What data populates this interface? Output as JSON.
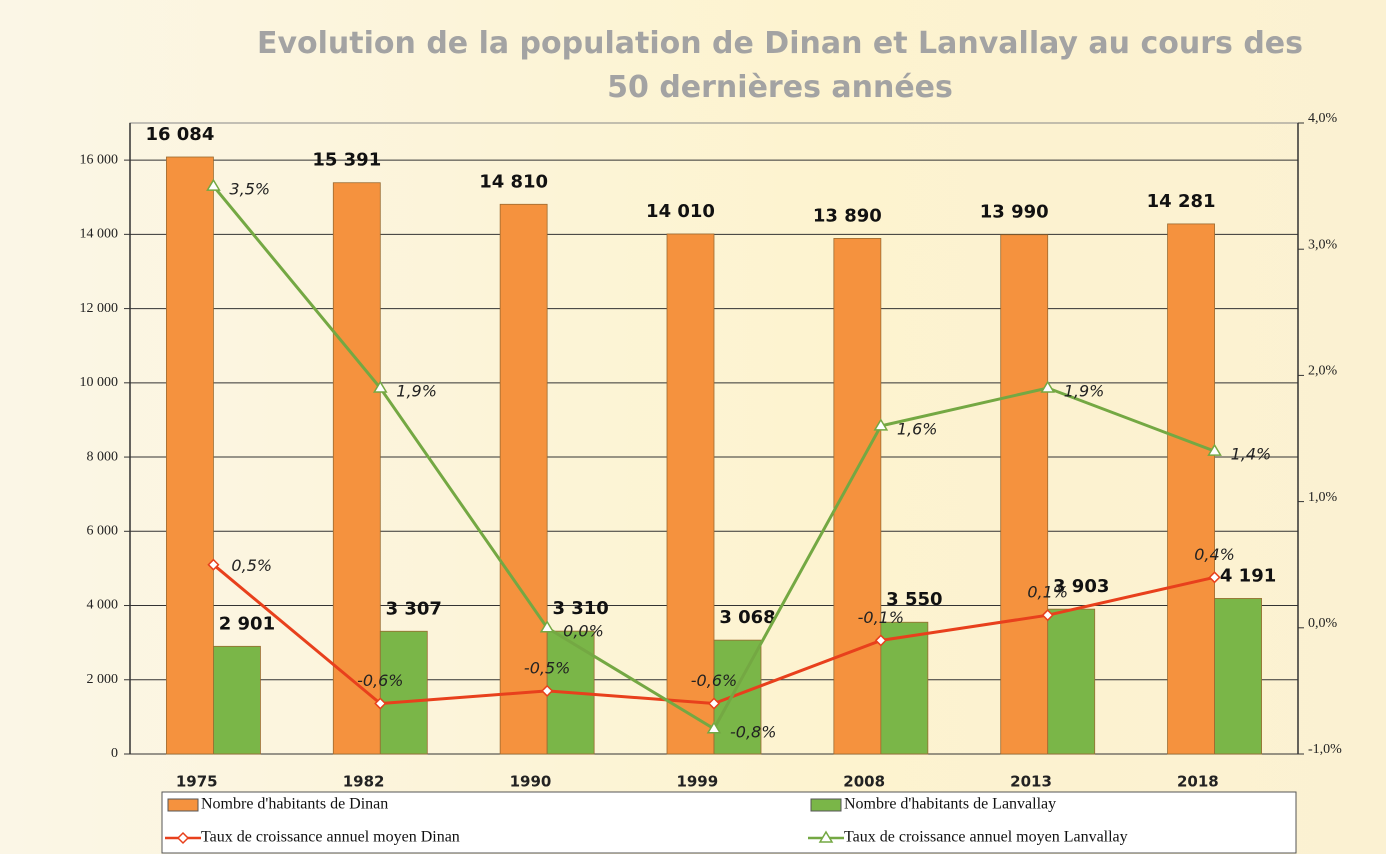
{
  "chart_data": {
    "type": "combo",
    "title": "Evolution de la population de Dinan et Lanvallay au cours des 50 dernières années",
    "categories": [
      "1975",
      "1982",
      "1990",
      "1999",
      "2008",
      "2013",
      "2018"
    ],
    "series": [
      {
        "name": "Nombre d'habitants de Dinan",
        "type": "bar",
        "color": "#f5923e",
        "values": [
          16084,
          15391,
          14810,
          14010,
          13890,
          13990,
          14281
        ],
        "value_labels": [
          "16 084",
          "15 391",
          "14 810",
          "14 010",
          "13 890",
          "13 990",
          "14 281"
        ]
      },
      {
        "name": "Nombre d'habitants de Lanvallay",
        "type": "bar",
        "color": "#7ab648",
        "values": [
          2901,
          3307,
          3310,
          3068,
          3550,
          3903,
          4191
        ],
        "value_labels": [
          "2 901",
          "3 307",
          "3 310",
          "3 068",
          "3 550",
          "3 903",
          "4 191"
        ]
      },
      {
        "name": "Taux de croissance annuel moyen Dinan",
        "type": "line",
        "axis": "y2",
        "marker": "diamond",
        "color": "#e8401c",
        "values": [
          0.5,
          -0.6,
          -0.5,
          -0.6,
          -0.1,
          0.1,
          0.4
        ],
        "value_labels": [
          "0,5%",
          "-0,6%",
          "-0,5%",
          "-0,6%",
          "-0,1%",
          "0,1%",
          "0,4%"
        ]
      },
      {
        "name": "Taux de croissance annuel moyen Lanvallay",
        "type": "line",
        "axis": "y2",
        "marker": "triangle",
        "color": "#74a843",
        "values": [
          3.5,
          1.9,
          0.0,
          -0.8,
          1.6,
          1.9,
          1.4
        ],
        "value_labels": [
          "3,5%",
          "1,9%",
          "0,0%",
          "-0,8%",
          "1,6%",
          "1,9%",
          "1,4%"
        ]
      }
    ],
    "ylim": [
      0,
      17000
    ],
    "yticks": [
      0,
      {
        "value": 2000,
        "label": "2 000"
      },
      {
        "value": 4000,
        "label": "4 000"
      },
      {
        "value": 6000,
        "label": "6 000"
      },
      {
        "value": 8000,
        "label": "8 000"
      },
      {
        "value": 10000,
        "label": "10 000"
      },
      {
        "value": 12000,
        "label": "12 000"
      },
      {
        "value": 14000,
        "label": "14 000"
      },
      {
        "value": 16000,
        "label": "16 000"
      }
    ],
    "y2lim": [
      -1,
      4
    ],
    "y2ticks": [
      {
        "value": -1,
        "label": "-1,0%"
      },
      {
        "value": 0,
        "label": "0,0%"
      },
      {
        "value": 1,
        "label": "1,0%"
      },
      {
        "value": 2,
        "label": "2,0%"
      },
      {
        "value": 3,
        "label": "3,0%"
      },
      {
        "value": 4,
        "label": "4,0%"
      }
    ],
    "grid": true,
    "legend": "bottom"
  }
}
